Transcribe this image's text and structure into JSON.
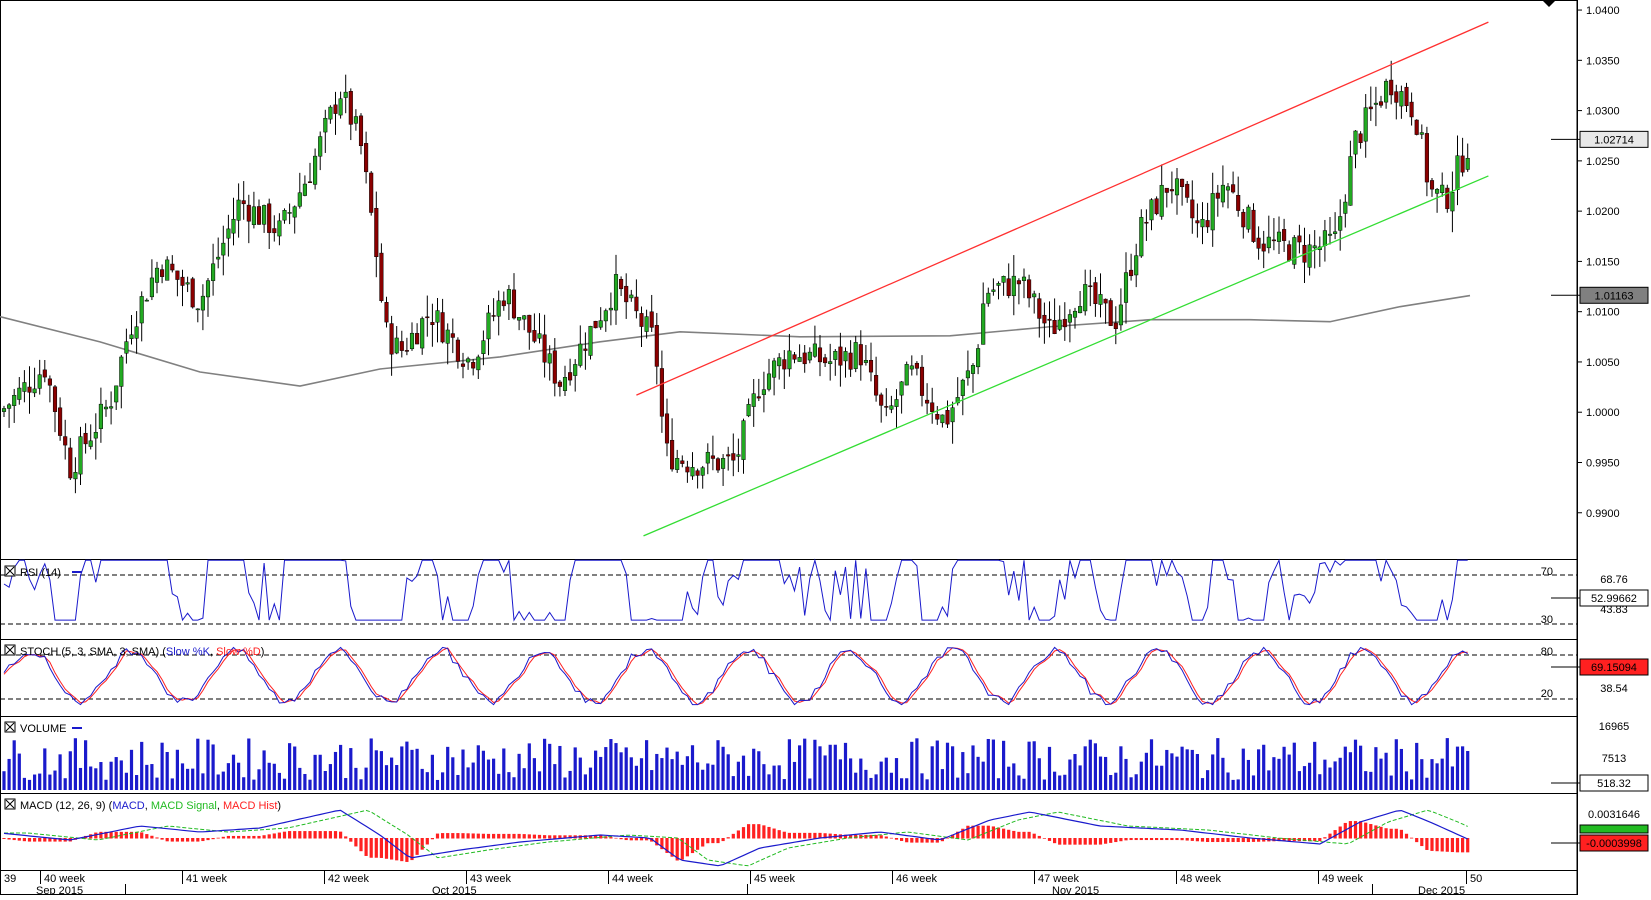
{
  "chart_data": [
    {
      "type": "candlestick",
      "panel": "price",
      "y_ticks": [
        "1.0400",
        "1.0350",
        "1.0300",
        "1.0250",
        "1.0200",
        "1.0150",
        "1.0100",
        "1.0050",
        "1.0000",
        "0.9950",
        "0.9900"
      ],
      "ylim": [
        0.9855,
        1.041
      ],
      "current_price_label": "1.02714",
      "current_price": 1.02714,
      "ma_label": "1.01163",
      "ma_value": 1.01163,
      "channel_upper": {
        "from": [
          44.2,
          1.0017
        ],
        "to": [
          50.2,
          1.0388
        ],
        "color": "#ff3030"
      },
      "channel_lower": {
        "from": [
          44.25,
          0.9877
        ],
        "to": [
          50.2,
          1.0235
        ],
        "color": "#33dd33"
      },
      "colors": {
        "bull": "#22aa22",
        "bear": "#8b0000",
        "wick": "#000000",
        "ma": "#808080"
      }
    },
    {
      "type": "line",
      "panel": "rsi",
      "label": "RSI (14)",
      "levels": [
        "70",
        "30"
      ],
      "right_ticks": [
        "68.76",
        "43.83"
      ],
      "current_label": "52.99662",
      "color": "#1a1acc"
    },
    {
      "type": "line",
      "panel": "stoch",
      "label": "STOCH (5, 3, SMA, 3, SMA)",
      "series": [
        {
          "name": "Slow %K",
          "color": "#1a1acc"
        },
        {
          "name": "Slow %D",
          "color": "#ff2020"
        }
      ],
      "levels": [
        "80",
        "20"
      ],
      "right_ticks": [
        "38.54"
      ],
      "current_label": "69.15094"
    },
    {
      "type": "bar",
      "panel": "volume",
      "label": "VOLUME",
      "right_ticks": [
        "16965",
        "7513"
      ],
      "current_label": "518.32",
      "color": "#1a1acc"
    },
    {
      "type": "line",
      "panel": "macd",
      "label": "MACD (12, 26, 9)",
      "series": [
        {
          "name": "MACD",
          "color": "#1a1acc"
        },
        {
          "name": "MACD Signal",
          "color": "#22bb22"
        },
        {
          "name": "MACD Hist",
          "color": "#ff2020"
        }
      ],
      "right_ticks": [
        "0.0031646"
      ],
      "current_label": "-0.0003998"
    }
  ],
  "x_axis": {
    "weeks": [
      "39",
      "40 week",
      "41 week",
      "42 week",
      "43 week",
      "44 week",
      "45 week",
      "46 week",
      "47 week",
      "48 week",
      "49 week",
      "50"
    ],
    "months": [
      "Sep 2015",
      "Oct 2015",
      "Nov 2015",
      "Dec 2015"
    ]
  }
}
